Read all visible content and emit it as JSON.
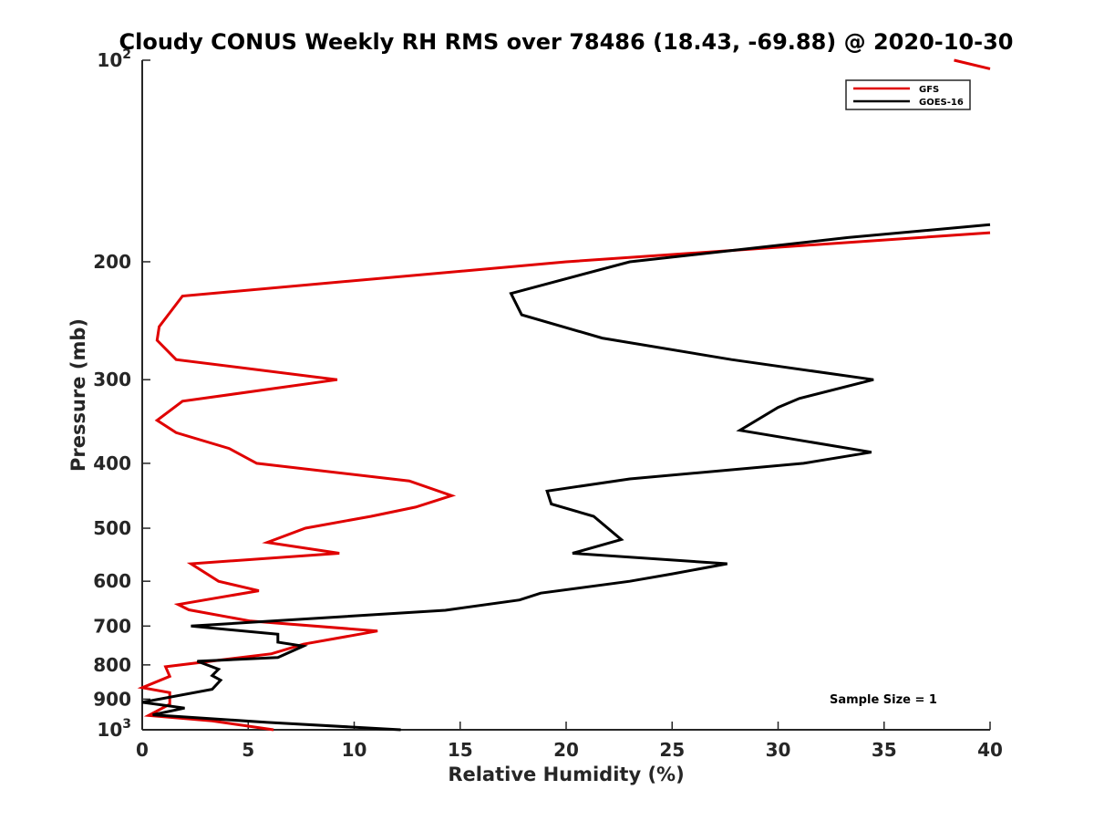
{
  "chart_data": {
    "type": "line",
    "title": "Cloudy CONUS Weekly RH RMS over 78486 (18.43, -69.88) @ 2020-10-30",
    "xlabel": "Relative Humidity (%)",
    "ylabel": "Pressure (mb)",
    "xlim": [
      0,
      40
    ],
    "ylim": [
      100,
      1000
    ],
    "yscale": "log",
    "y_reversed": true,
    "grid": false,
    "legend_position": "top-right",
    "x_ticks": [
      "0",
      "5",
      "10",
      "15",
      "20",
      "25",
      "30",
      "35",
      "40"
    ],
    "y_ticks": [
      {
        "value": 100,
        "label": "10",
        "exp": "2"
      },
      {
        "value": 200,
        "label": "200"
      },
      {
        "value": 300,
        "label": "300"
      },
      {
        "value": 400,
        "label": "400"
      },
      {
        "value": 500,
        "label": "500"
      },
      {
        "value": 600,
        "label": "600"
      },
      {
        "value": 700,
        "label": "700"
      },
      {
        "value": 800,
        "label": "800"
      },
      {
        "value": 900,
        "label": "900"
      },
      {
        "value": 1000,
        "label": "10",
        "exp": "3"
      }
    ],
    "annotation": "Sample Size = 1",
    "series": [
      {
        "name": "GFS",
        "color": "#e00000",
        "segments": [
          [
            [
              38.3,
              100
            ],
            [
              40.0,
              103
            ]
          ],
          [
            [
              40.0,
              181
            ],
            [
              20.0,
              200
            ],
            [
              1.9,
              225
            ],
            [
              0.8,
              250
            ],
            [
              0.7,
              262
            ],
            [
              1.6,
              280
            ],
            [
              9.2,
              300
            ],
            [
              1.9,
              323
            ],
            [
              0.7,
              345
            ],
            [
              1.6,
              360
            ],
            [
              4.1,
              380
            ],
            [
              5.4,
              400
            ],
            [
              12.6,
              425
            ],
            [
              14.6,
              447
            ],
            [
              12.9,
              465
            ],
            [
              10.8,
              480
            ],
            [
              7.7,
              500
            ],
            [
              5.9,
              525
            ],
            [
              9.3,
              545
            ],
            [
              2.3,
              565
            ],
            [
              3.6,
              600
            ],
            [
              5.5,
              620
            ],
            [
              1.7,
              650
            ],
            [
              2.2,
              662
            ],
            [
              5.1,
              688
            ],
            [
              11.1,
              712
            ],
            [
              7.6,
              745
            ],
            [
              6.1,
              770
            ],
            [
              1.1,
              805
            ],
            [
              1.3,
              832
            ],
            [
              0.0,
              865
            ],
            [
              1.3,
              880
            ],
            [
              1.3,
              916
            ],
            [
              0.3,
              952
            ],
            [
              3.3,
              970
            ],
            [
              6.2,
              1000
            ]
          ]
        ]
      },
      {
        "name": "GOES-16",
        "color": "#000000",
        "segments": [
          [
            [
              40.0,
              176
            ],
            [
              33.3,
              184
            ],
            [
              23.0,
              200
            ],
            [
              17.4,
              223
            ],
            [
              17.9,
              240
            ],
            [
              21.7,
              260
            ],
            [
              27.8,
              280
            ],
            [
              34.5,
              300
            ],
            [
              31.0,
              320
            ],
            [
              30.0,
              330
            ],
            [
              28.2,
              357
            ],
            [
              34.4,
              385
            ],
            [
              31.2,
              400
            ],
            [
              23.0,
              422
            ],
            [
              19.1,
              440
            ],
            [
              19.3,
              460
            ],
            [
              21.3,
              480
            ],
            [
              22.6,
              520
            ],
            [
              20.3,
              545
            ],
            [
              27.6,
              565
            ],
            [
              25.0,
              585
            ],
            [
              23.0,
              600
            ],
            [
              18.8,
              625
            ],
            [
              17.8,
              640
            ],
            [
              14.3,
              663
            ],
            [
              2.3,
              700
            ],
            [
              6.4,
              720
            ],
            [
              6.4,
              740
            ],
            [
              7.6,
              750
            ],
            [
              6.4,
              780
            ],
            [
              2.6,
              790
            ],
            [
              3.6,
              812
            ],
            [
              3.3,
              830
            ],
            [
              3.7,
              843
            ],
            [
              3.3,
              870
            ],
            [
              0.0,
              910
            ],
            [
              2.0,
              928
            ],
            [
              0.5,
              950
            ],
            [
              5.9,
              975
            ],
            [
              12.2,
              1000
            ]
          ]
        ]
      }
    ]
  }
}
